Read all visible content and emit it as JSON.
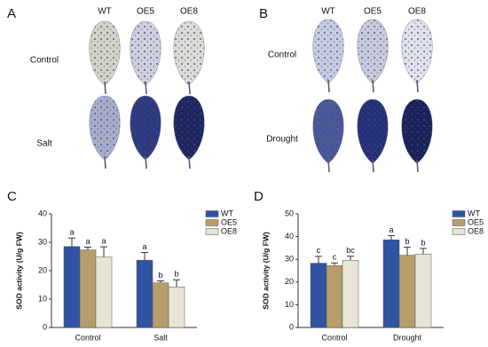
{
  "panel_a": {
    "label": "A",
    "columns": [
      "WT",
      "OE5",
      "OE8"
    ],
    "rows": [
      "Control",
      "Salt"
    ]
  },
  "panel_b": {
    "label": "B",
    "columns": [
      "WT",
      "OE5",
      "OE8"
    ],
    "rows": [
      "Control",
      "Drought"
    ]
  },
  "chart_data": [
    {
      "type": "bar",
      "panel_label": "C",
      "ylabel": "SOD activity (U/g FW)",
      "categories": [
        "Control",
        "Salt"
      ],
      "ylim": [
        0,
        40
      ],
      "yticks": [
        0,
        10,
        20,
        30,
        40
      ],
      "series": [
        {
          "name": "WT",
          "color": "#2e54a2",
          "values": [
            28.5,
            23.7
          ],
          "errors": [
            3.0,
            2.7
          ],
          "letters": [
            "a",
            "a"
          ]
        },
        {
          "name": "OE5",
          "color": "#b89d6c",
          "values": [
            27.3,
            15.7
          ],
          "errors": [
            1.0,
            0.7
          ],
          "letters": [
            "a",
            "b"
          ]
        },
        {
          "name": "OE8",
          "color": "#e8e4d6",
          "values": [
            24.8,
            14.3
          ],
          "errors": [
            3.6,
            2.5
          ],
          "letters": [
            "a",
            "b"
          ]
        }
      ]
    },
    {
      "type": "bar",
      "panel_label": "D",
      "ylabel": "SOD activity (U/g FW)",
      "categories": [
        "Control",
        "Drought"
      ],
      "ylim": [
        0,
        50
      ],
      "yticks": [
        0,
        10,
        20,
        30,
        40,
        50
      ],
      "series": [
        {
          "name": "WT",
          "color": "#2e54a2",
          "values": [
            28.3,
            38.6
          ],
          "errors": [
            3.0,
            1.8
          ],
          "letters": [
            "c",
            "a"
          ]
        },
        {
          "name": "OE5",
          "color": "#b89d6c",
          "values": [
            27.2,
            31.8
          ],
          "errors": [
            1.2,
            3.5
          ],
          "letters": [
            "c",
            "b"
          ]
        },
        {
          "name": "OE8",
          "color": "#e8e4d6",
          "values": [
            29.6,
            32.3
          ],
          "errors": [
            1.8,
            2.5
          ],
          "letters": [
            "bc",
            "b"
          ]
        }
      ]
    }
  ]
}
